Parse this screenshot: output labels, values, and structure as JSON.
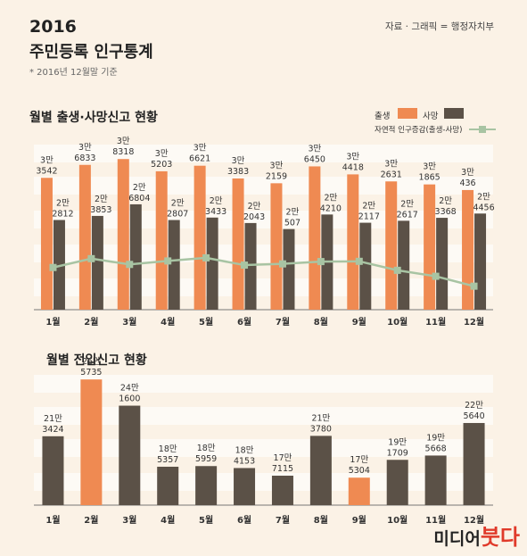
{
  "header": {
    "title": "2016",
    "subtitle": "주민등록 인구통계",
    "note": "* 2016년 12월말 기준",
    "source": "자료 · 그래픽 = 행정자치부"
  },
  "brand": {
    "part1": "미디어",
    "part2": "붓다"
  },
  "colors": {
    "birth": "#ef8a52",
    "death": "#5b5147",
    "natural": "#a8c4a3",
    "highlight": "#ef8a52",
    "move": "#5b5147",
    "band": "#fdfaf5"
  },
  "chart_data": [
    {
      "type": "bar",
      "title": "월별 출생·사망신고 현황",
      "categories": [
        "1월",
        "2월",
        "3월",
        "4월",
        "5월",
        "6월",
        "7월",
        "8월",
        "9월",
        "10월",
        "11월",
        "12월"
      ],
      "series": [
        {
          "name": "출생",
          "values": [
            33542,
            36833,
            38318,
            35203,
            36621,
            33383,
            32159,
            36450,
            34418,
            32631,
            31865,
            30436
          ],
          "labels": [
            [
              "3만",
              "3542"
            ],
            [
              "3만",
              "6833"
            ],
            [
              "3만",
              "8318"
            ],
            [
              "3만",
              "5203"
            ],
            [
              "3만",
              "6621"
            ],
            [
              "3만",
              "3383"
            ],
            [
              "3만",
              "2159"
            ],
            [
              "3만",
              "6450"
            ],
            [
              "3만",
              "4418"
            ],
            [
              "3만",
              "2631"
            ],
            [
              "3만",
              "1865"
            ],
            [
              "3만",
              "436"
            ]
          ]
        },
        {
          "name": "사망",
          "values": [
            22812,
            23853,
            26804,
            22807,
            23433,
            22043,
            20507,
            24210,
            22117,
            22617,
            23368,
            24456
          ],
          "labels": [
            [
              "2만",
              "2812"
            ],
            [
              "2만",
              "3853"
            ],
            [
              "2만",
              "6804"
            ],
            [
              "2만",
              "2807"
            ],
            [
              "2만",
              "3433"
            ],
            [
              "2만",
              "2043"
            ],
            [
              "2만",
              "507"
            ],
            [
              "2만",
              "4210"
            ],
            [
              "2만",
              "2117"
            ],
            [
              "2만",
              "2617"
            ],
            [
              "2만",
              "3368"
            ],
            [
              "2만",
              "4456"
            ]
          ]
        },
        {
          "name": "자연적 인구증감(출생-사망)",
          "type": "line",
          "values": [
            10730,
            12980,
            11514,
            12396,
            13188,
            11340,
            11652,
            12240,
            12301,
            10014,
            8497,
            5980
          ]
        }
      ],
      "legend": [
        "출생",
        "사망",
        "자연적 인구증감(출생-사망)"
      ],
      "legend_position": "top-right",
      "ylim": [
        0,
        42000
      ]
    },
    {
      "type": "bar",
      "title": "월별 전입신고 현황",
      "categories": [
        "1월",
        "2월",
        "3월",
        "4월",
        "5월",
        "6월",
        "7월",
        "8월",
        "9월",
        "10월",
        "11월",
        "12월"
      ],
      "series": [
        {
          "name": "전입",
          "values": [
            213424,
            265735,
            241600,
            185357,
            185959,
            184153,
            177115,
            213780,
            175304,
            191709,
            195668,
            225640
          ],
          "labels": [
            [
              "21만",
              "3424"
            ],
            [
              "26만",
              "5735"
            ],
            [
              "24만",
              "1600"
            ],
            [
              "18만",
              "5357"
            ],
            [
              "18만",
              "5959"
            ],
            [
              "18만",
              "4153"
            ],
            [
              "17만",
              "7115"
            ],
            [
              "21만",
              "3780"
            ],
            [
              "17만",
              "5304"
            ],
            [
              "19만",
              "1709"
            ],
            [
              "19만",
              "5668"
            ],
            [
              "22만",
              "5640"
            ]
          ]
        }
      ],
      "highlight_categories": [
        "2월",
        "9월"
      ],
      "ylim": [
        150000,
        270000
      ]
    }
  ]
}
